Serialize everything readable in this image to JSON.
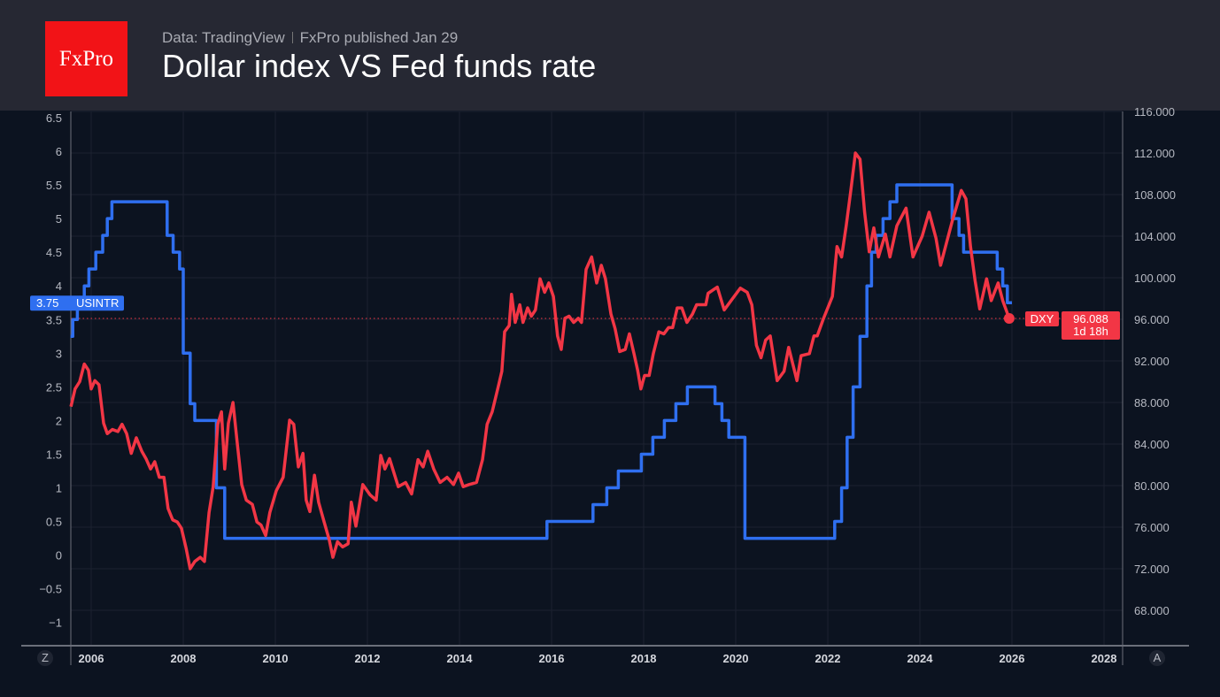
{
  "header": {
    "logo": "FxPro",
    "source": "Data: TradingView",
    "published": "FxPro published Jan 29",
    "title": "Dollar index VS Fed funds rate"
  },
  "axis_buttons": {
    "left": "Z",
    "right": "A"
  },
  "chart_data": {
    "type": "line",
    "title": "Dollar index VS Fed funds rate",
    "x_ticks": [
      "2006",
      "2008",
      "2010",
      "2012",
      "2014",
      "2016",
      "2018",
      "2020",
      "2022",
      "2024",
      "2026",
      "2028"
    ],
    "xlim": [
      2005.55,
      2028.5
    ],
    "left_axis": {
      "ylim": [
        -1.3,
        6.6
      ],
      "ticks": [
        "6.5",
        "6",
        "5.5",
        "5",
        "4.5",
        "4",
        "3.5",
        "3",
        "2.5",
        "2",
        "1.5",
        "1",
        "0.5",
        "0",
        "−0.5",
        "−1"
      ]
    },
    "right_axis": {
      "ylim": [
        64.7,
        116.5
      ],
      "ticks": [
        "116.000",
        "112.000",
        "108.000",
        "104.000",
        "100.000",
        "96.000",
        "92.000",
        "88.000",
        "84.000",
        "80.000",
        "76.000",
        "72.000",
        "68.000"
      ]
    },
    "grid": true,
    "series": [
      {
        "name": "USINTR",
        "axis": "left",
        "color": "#2f6ff0",
        "step": true,
        "last_value": "3.75",
        "points": [
          [
            2005.55,
            3.25
          ],
          [
            2005.6,
            3.5
          ],
          [
            2005.7,
            3.75
          ],
          [
            2005.85,
            4.0
          ],
          [
            2005.95,
            4.25
          ],
          [
            2006.1,
            4.5
          ],
          [
            2006.25,
            4.75
          ],
          [
            2006.35,
            5.0
          ],
          [
            2006.45,
            5.25
          ],
          [
            2007.65,
            4.75
          ],
          [
            2007.78,
            4.5
          ],
          [
            2007.92,
            4.25
          ],
          [
            2008.0,
            3.0
          ],
          [
            2008.15,
            2.25
          ],
          [
            2008.25,
            2.0
          ],
          [
            2008.72,
            1.0
          ],
          [
            2008.9,
            0.25
          ],
          [
            2015.9,
            0.5
          ],
          [
            2016.9,
            0.75
          ],
          [
            2017.2,
            1.0
          ],
          [
            2017.45,
            1.25
          ],
          [
            2017.95,
            1.5
          ],
          [
            2018.2,
            1.75
          ],
          [
            2018.45,
            2.0
          ],
          [
            2018.7,
            2.25
          ],
          [
            2018.95,
            2.5
          ],
          [
            2019.55,
            2.25
          ],
          [
            2019.7,
            2.0
          ],
          [
            2019.85,
            1.75
          ],
          [
            2020.2,
            0.25
          ],
          [
            2022.15,
            0.5
          ],
          [
            2022.3,
            1.0
          ],
          [
            2022.42,
            1.75
          ],
          [
            2022.55,
            2.5
          ],
          [
            2022.7,
            3.25
          ],
          [
            2022.85,
            4.0
          ],
          [
            2022.95,
            4.5
          ],
          [
            2023.05,
            4.75
          ],
          [
            2023.2,
            5.0
          ],
          [
            2023.35,
            5.25
          ],
          [
            2023.5,
            5.5
          ],
          [
            2024.7,
            5.0
          ],
          [
            2024.85,
            4.75
          ],
          [
            2024.95,
            4.5
          ],
          [
            2025.68,
            4.25
          ],
          [
            2025.8,
            4.0
          ],
          [
            2025.9,
            3.75
          ],
          [
            2026.0,
            3.75
          ]
        ]
      },
      {
        "name": "DXY",
        "axis": "right",
        "color": "#f23645",
        "last_value": "96.088",
        "countdown": "1d 18h",
        "points": [
          [
            2005.56,
            87.6
          ],
          [
            2005.65,
            89.3
          ],
          [
            2005.75,
            90
          ],
          [
            2005.85,
            91.7
          ],
          [
            2005.94,
            91.1
          ],
          [
            2006.0,
            89.3
          ],
          [
            2006.08,
            90.1
          ],
          [
            2006.17,
            89.7
          ],
          [
            2006.27,
            86
          ],
          [
            2006.35,
            85
          ],
          [
            2006.46,
            85.4
          ],
          [
            2006.58,
            85.2
          ],
          [
            2006.67,
            85.9
          ],
          [
            2006.77,
            85
          ],
          [
            2006.87,
            83.1
          ],
          [
            2006.98,
            84.6
          ],
          [
            2007.1,
            83.3
          ],
          [
            2007.19,
            82.6
          ],
          [
            2007.29,
            81.6
          ],
          [
            2007.38,
            82.3
          ],
          [
            2007.48,
            80.8
          ],
          [
            2007.58,
            80.8
          ],
          [
            2007.67,
            77.8
          ],
          [
            2007.77,
            76.7
          ],
          [
            2007.87,
            76.5
          ],
          [
            2007.96,
            75.9
          ],
          [
            2008.06,
            74
          ],
          [
            2008.15,
            72
          ],
          [
            2008.25,
            72.7
          ],
          [
            2008.37,
            73.1
          ],
          [
            2008.46,
            72.7
          ],
          [
            2008.56,
            77.4
          ],
          [
            2008.65,
            79.9
          ],
          [
            2008.75,
            85.9
          ],
          [
            2008.83,
            87.1
          ],
          [
            2008.9,
            81.6
          ],
          [
            2008.98,
            86
          ],
          [
            2009.08,
            88
          ],
          [
            2009.17,
            84.2
          ],
          [
            2009.27,
            80.1
          ],
          [
            2009.37,
            78.6
          ],
          [
            2009.5,
            78.2
          ],
          [
            2009.6,
            76.5
          ],
          [
            2009.69,
            76.2
          ],
          [
            2009.79,
            75.2
          ],
          [
            2009.88,
            77.4
          ],
          [
            2010.02,
            79.5
          ],
          [
            2010.17,
            80.8
          ],
          [
            2010.31,
            86.3
          ],
          [
            2010.4,
            85.9
          ],
          [
            2010.5,
            81.8
          ],
          [
            2010.6,
            83.1
          ],
          [
            2010.67,
            78.6
          ],
          [
            2010.75,
            77.5
          ],
          [
            2010.85,
            81
          ],
          [
            2010.94,
            78.4
          ],
          [
            2011.06,
            76.5
          ],
          [
            2011.17,
            74.8
          ],
          [
            2011.25,
            73.1
          ],
          [
            2011.35,
            74.6
          ],
          [
            2011.46,
            74.1
          ],
          [
            2011.58,
            74.4
          ],
          [
            2011.65,
            78.4
          ],
          [
            2011.75,
            76.1
          ],
          [
            2011.9,
            80.1
          ],
          [
            2012.06,
            79.1
          ],
          [
            2012.19,
            78.6
          ],
          [
            2012.29,
            82.9
          ],
          [
            2012.38,
            81.6
          ],
          [
            2012.48,
            82.6
          ],
          [
            2012.67,
            79.9
          ],
          [
            2012.83,
            80.3
          ],
          [
            2012.96,
            79.2
          ],
          [
            2013.1,
            82.5
          ],
          [
            2013.21,
            81.8
          ],
          [
            2013.31,
            83.3
          ],
          [
            2013.44,
            81.6
          ],
          [
            2013.58,
            80.3
          ],
          [
            2013.73,
            80.8
          ],
          [
            2013.87,
            80.1
          ],
          [
            2013.98,
            81.2
          ],
          [
            2014.08,
            79.9
          ],
          [
            2014.21,
            80.1
          ],
          [
            2014.37,
            80.3
          ],
          [
            2014.5,
            82.5
          ],
          [
            2014.6,
            85.9
          ],
          [
            2014.71,
            87.1
          ],
          [
            2014.83,
            89.3
          ],
          [
            2014.92,
            91
          ],
          [
            2014.98,
            94.8
          ],
          [
            2015.08,
            95.4
          ],
          [
            2015.13,
            98.4
          ],
          [
            2015.21,
            95.7
          ],
          [
            2015.31,
            97.4
          ],
          [
            2015.38,
            95.7
          ],
          [
            2015.48,
            97.1
          ],
          [
            2015.56,
            96.3
          ],
          [
            2015.65,
            96.9
          ],
          [
            2015.75,
            99.9
          ],
          [
            2015.85,
            98.6
          ],
          [
            2015.94,
            99.5
          ],
          [
            2016.04,
            98.2
          ],
          [
            2016.13,
            94.4
          ],
          [
            2016.21,
            93.1
          ],
          [
            2016.29,
            96.1
          ],
          [
            2016.38,
            96.3
          ],
          [
            2016.48,
            95.7
          ],
          [
            2016.58,
            96.1
          ],
          [
            2016.65,
            95.7
          ],
          [
            2016.75,
            100.8
          ],
          [
            2016.87,
            102
          ],
          [
            2016.98,
            99.5
          ],
          [
            2017.08,
            101.2
          ],
          [
            2017.17,
            99.9
          ],
          [
            2017.29,
            96.5
          ],
          [
            2017.38,
            95.1
          ],
          [
            2017.48,
            92.9
          ],
          [
            2017.6,
            93.1
          ],
          [
            2017.69,
            94.6
          ],
          [
            2017.79,
            92.7
          ],
          [
            2017.87,
            91.1
          ],
          [
            2017.94,
            89.3
          ],
          [
            2018.02,
            90.6
          ],
          [
            2018.12,
            90.6
          ],
          [
            2018.21,
            92.7
          ],
          [
            2018.33,
            94.8
          ],
          [
            2018.44,
            94.6
          ],
          [
            2018.54,
            95.2
          ],
          [
            2018.63,
            95.2
          ],
          [
            2018.73,
            97.1
          ],
          [
            2018.83,
            97.1
          ],
          [
            2018.94,
            95.7
          ],
          [
            2019.06,
            96.5
          ],
          [
            2019.15,
            97.4
          ],
          [
            2019.27,
            97.4
          ],
          [
            2019.35,
            97.4
          ],
          [
            2019.4,
            98.5
          ],
          [
            2019.5,
            98.8
          ],
          [
            2019.6,
            99.1
          ],
          [
            2019.75,
            96.9
          ],
          [
            2019.9,
            97.8
          ],
          [
            2020.1,
            99
          ],
          [
            2020.25,
            98.6
          ],
          [
            2020.35,
            97.4
          ],
          [
            2020.45,
            93.5
          ],
          [
            2020.55,
            92.3
          ],
          [
            2020.65,
            94
          ],
          [
            2020.75,
            94.4
          ],
          [
            2020.9,
            90.1
          ],
          [
            2021.05,
            91
          ],
          [
            2021.15,
            93.3
          ],
          [
            2021.33,
            90.1
          ],
          [
            2021.42,
            92.5
          ],
          [
            2021.6,
            92.7
          ],
          [
            2021.7,
            94.4
          ],
          [
            2021.77,
            94.4
          ],
          [
            2021.9,
            96
          ],
          [
            2022.1,
            98.2
          ],
          [
            2022.2,
            103
          ],
          [
            2022.3,
            102
          ],
          [
            2022.4,
            105
          ],
          [
            2022.5,
            108.4
          ],
          [
            2022.6,
            112
          ],
          [
            2022.7,
            111.4
          ],
          [
            2022.8,
            106.3
          ],
          [
            2022.9,
            102.5
          ],
          [
            2023.0,
            104.8
          ],
          [
            2023.1,
            102
          ],
          [
            2023.25,
            104.2
          ],
          [
            2023.35,
            102
          ],
          [
            2023.5,
            105
          ],
          [
            2023.7,
            106.7
          ],
          [
            2023.85,
            102
          ],
          [
            2024.05,
            104
          ],
          [
            2024.2,
            106.3
          ],
          [
            2024.35,
            103.8
          ],
          [
            2024.45,
            101.2
          ],
          [
            2024.7,
            105.4
          ],
          [
            2024.9,
            108.4
          ],
          [
            2025.0,
            107.6
          ],
          [
            2025.1,
            103
          ],
          [
            2025.2,
            99.7
          ],
          [
            2025.3,
            97
          ],
          [
            2025.45,
            99.9
          ],
          [
            2025.55,
            97.8
          ],
          [
            2025.7,
            99.5
          ],
          [
            2025.8,
            97.8
          ],
          [
            2025.94,
            96.088
          ]
        ]
      }
    ]
  }
}
